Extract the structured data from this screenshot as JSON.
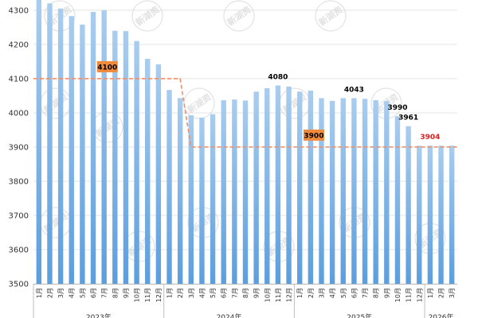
{
  "chart_data": {
    "type": "bar",
    "title": "",
    "xlabel": "",
    "ylabel": "",
    "ylim": [
      3500,
      4330
    ],
    "yticks": [
      3500,
      3600,
      3700,
      3800,
      3900,
      4000,
      4100,
      4200,
      4300
    ],
    "categories": [
      "1月",
      "2月",
      "3月",
      "4月",
      "5月",
      "6月",
      "7月",
      "8月",
      "9月",
      "10月",
      "11月",
      "12月",
      "1月",
      "2月",
      "3月",
      "4月",
      "5月",
      "6月",
      "7月",
      "8月",
      "9月",
      "10月",
      "11月",
      "12月",
      "1月",
      "2月",
      "3月",
      "4月",
      "5月",
      "6月",
      "7月",
      "8月",
      "9月",
      "10月",
      "11月",
      "12月",
      "1月",
      "2月",
      "3月"
    ],
    "year_groups": [
      {
        "label": "2023年",
        "start": 0,
        "count": 12
      },
      {
        "label": "2024年",
        "start": 12,
        "count": 12
      },
      {
        "label": "2025年",
        "start": 24,
        "count": 12
      },
      {
        "label": "2026年",
        "start": 36,
        "count": 3
      }
    ],
    "values": [
      4335,
      4320,
      4305,
      4283,
      4258,
      4295,
      4300,
      4240,
      4239,
      4210,
      4158,
      4142,
      4067,
      4043,
      3993,
      3986,
      3996,
      4037,
      4039,
      4036,
      4062,
      4072,
      4080,
      4077,
      4062,
      4065,
      4043,
      4035,
      4043,
      4043,
      4041,
      4037,
      4034,
      3990,
      3961,
      3904,
      3904,
      3904,
      3904
    ],
    "data_labels": [
      {
        "index": 22,
        "text": "4080",
        "color": "#000000"
      },
      {
        "index": 29,
        "text": "4043",
        "color": "#000000"
      },
      {
        "index": 33,
        "text": "3990",
        "color": "#000000"
      },
      {
        "index": 34,
        "text": "3961",
        "color": "#000000"
      },
      {
        "index": 36,
        "text": "3904",
        "color": "#e02020"
      }
    ],
    "reference_line": {
      "color": "#f0906a",
      "segments": [
        {
          "from_index": 0,
          "to_index": 13,
          "value": 4100
        },
        {
          "from_index": 14,
          "to_index": 38,
          "value": 3900
        }
      ],
      "transition": {
        "from_index": 13,
        "to_index": 14
      },
      "labels": [
        {
          "text": "4100",
          "index": 6,
          "value": 4100
        },
        {
          "text": "3900",
          "index": 25,
          "value": 3900
        }
      ],
      "label_bg": "#f08a3c"
    },
    "bar_gradient": {
      "top": "#a9cdef",
      "bottom": "#5b9ede"
    }
  },
  "watermark": {
    "text": "新湖资",
    "color": "#cccccc"
  }
}
